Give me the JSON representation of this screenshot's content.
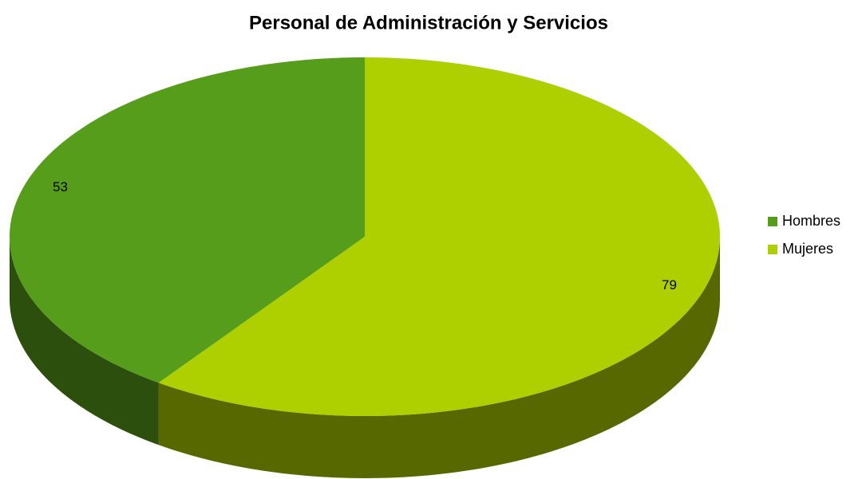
{
  "chart_data": {
    "type": "pie",
    "title": "Personal de Administración y Servicios",
    "categories": [
      "Hombres",
      "Mujeres"
    ],
    "values": [
      53,
      79
    ],
    "colors": [
      "#579d1c",
      "#aecf00"
    ],
    "legend": "right"
  }
}
